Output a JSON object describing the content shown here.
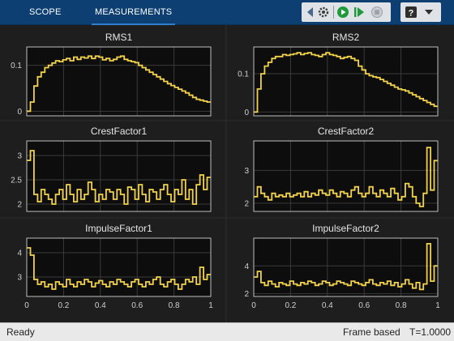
{
  "toolstrip": {
    "tabs": [
      {
        "label": "SCOPE",
        "active": false
      },
      {
        "label": "MEASUREMENTS",
        "active": true
      }
    ],
    "icons": [
      "left-arrow-icon",
      "settings-gear-icon",
      "run-icon",
      "step-forward-icon",
      "stop-icon",
      "help-icon",
      "expand-icon"
    ]
  },
  "status": {
    "left": "Ready",
    "mode": "Frame based",
    "time": "T=1.0000"
  },
  "colors": {
    "trace": "#f2d24b",
    "axes_bg": "#0d0d0d",
    "figure_bg": "#1e1e1e",
    "axis_line": "#bfbfbf",
    "grid": "#3a3a3a"
  },
  "chart_data": [
    {
      "type": "line",
      "title": "RMS1",
      "xlim": [
        0,
        1
      ],
      "ylim": [
        -0.01,
        0.14
      ],
      "yticks": [
        0,
        0.1
      ],
      "ytick_labels": [
        "0",
        "0.1"
      ],
      "show_xticks": false,
      "grid": true,
      "series": [
        {
          "values": [
            0,
            0.02,
            0.055,
            0.075,
            0.085,
            0.095,
            0.1,
            0.105,
            0.11,
            0.108,
            0.112,
            0.115,
            0.11,
            0.118,
            0.113,
            0.118,
            0.116,
            0.12,
            0.115,
            0.12,
            0.118,
            0.112,
            0.115,
            0.11,
            0.113,
            0.118,
            0.12,
            0.113,
            0.11,
            0.108,
            0.106,
            0.1,
            0.095,
            0.09,
            0.085,
            0.08,
            0.075,
            0.07,
            0.065,
            0.06,
            0.056,
            0.052,
            0.048,
            0.044,
            0.04,
            0.035,
            0.03,
            0.026,
            0.024,
            0.022,
            0.02
          ]
        }
      ]
    },
    {
      "type": "line",
      "title": "RMS2",
      "xlim": [
        0,
        1
      ],
      "ylim": [
        -0.01,
        0.17
      ],
      "yticks": [
        0,
        0.1
      ],
      "ytick_labels": [
        "0",
        "0.1"
      ],
      "show_xticks": false,
      "grid": true,
      "series": [
        {
          "values": [
            0,
            0.06,
            0.1,
            0.12,
            0.13,
            0.14,
            0.145,
            0.145,
            0.15,
            0.148,
            0.15,
            0.152,
            0.155,
            0.15,
            0.153,
            0.155,
            0.15,
            0.148,
            0.145,
            0.15,
            0.155,
            0.15,
            0.148,
            0.145,
            0.14,
            0.143,
            0.145,
            0.14,
            0.135,
            0.12,
            0.11,
            0.1,
            0.095,
            0.092,
            0.09,
            0.085,
            0.08,
            0.075,
            0.07,
            0.065,
            0.06,
            0.058,
            0.055,
            0.05,
            0.045,
            0.04,
            0.035,
            0.03,
            0.025,
            0.02,
            0.015
          ]
        }
      ]
    },
    {
      "type": "line",
      "title": "CrestFactor1",
      "xlim": [
        0,
        1
      ],
      "ylim": [
        1.85,
        3.3
      ],
      "yticks": [
        2,
        2.5,
        3
      ],
      "ytick_labels": [
        "2",
        "2.5",
        "3"
      ],
      "show_xticks": false,
      "grid": true,
      "series": [
        {
          "values": [
            2.9,
            3.1,
            2.2,
            2.05,
            2.3,
            2.2,
            2.1,
            2.0,
            2.2,
            2.3,
            2.1,
            2.4,
            2.2,
            2.05,
            2.3,
            2.1,
            2.2,
            2.45,
            2.3,
            2.05,
            2.2,
            2.1,
            2.3,
            2.25,
            2.1,
            2.3,
            2.2,
            2.0,
            2.35,
            2.3,
            2.1,
            2.4,
            2.2,
            2.05,
            2.3,
            2.25,
            2.1,
            2.3,
            2.4,
            2.2,
            2.05,
            2.3,
            2.2,
            2.5,
            2.1,
            2.3,
            2.0,
            2.4,
            2.6,
            2.3,
            2.55
          ]
        }
      ]
    },
    {
      "type": "line",
      "title": "CrestFactor2",
      "xlim": [
        0,
        1
      ],
      "ylim": [
        1.75,
        3.9
      ],
      "yticks": [
        2,
        3
      ],
      "ytick_labels": [
        "2",
        "3"
      ],
      "show_xticks": false,
      "grid": true,
      "series": [
        {
          "values": [
            2.2,
            2.5,
            2.3,
            2.2,
            2.1,
            2.3,
            2.2,
            2.25,
            2.2,
            2.3,
            2.2,
            2.25,
            2.3,
            2.2,
            2.35,
            2.2,
            2.3,
            2.25,
            2.4,
            2.3,
            2.25,
            2.4,
            2.3,
            2.2,
            2.35,
            2.3,
            2.2,
            2.4,
            2.5,
            2.3,
            2.2,
            2.3,
            2.5,
            2.3,
            2.2,
            2.4,
            2.3,
            2.2,
            2.45,
            2.3,
            2.1,
            2.2,
            2.6,
            2.5,
            2.2,
            2.0,
            1.9,
            2.3,
            3.7,
            2.4,
            3.3
          ]
        }
      ]
    },
    {
      "type": "line",
      "title": "ImpulseFactor1",
      "xlim": [
        0,
        1
      ],
      "ylim": [
        2.2,
        4.6
      ],
      "yticks": [
        3,
        4
      ],
      "ytick_labels": [
        "3",
        "4"
      ],
      "show_xticks": true,
      "xticks": [
        0,
        0.2,
        0.4,
        0.6,
        0.8,
        1
      ],
      "xtick_labels": [
        "0",
        "0.2",
        "0.4",
        "0.6",
        "0.8",
        "1"
      ],
      "grid": true,
      "series": [
        {
          "values": [
            4.2,
            3.9,
            2.9,
            2.7,
            2.8,
            2.6,
            2.7,
            2.5,
            2.8,
            2.7,
            2.6,
            2.9,
            2.7,
            2.6,
            2.8,
            2.7,
            2.9,
            2.8,
            2.6,
            2.75,
            2.85,
            2.7,
            2.6,
            2.8,
            2.7,
            2.9,
            2.8,
            2.7,
            2.6,
            2.8,
            2.9,
            2.7,
            2.6,
            2.8,
            2.7,
            2.9,
            3.0,
            2.7,
            2.6,
            2.8,
            2.9,
            2.7,
            2.5,
            2.7,
            2.9,
            2.8,
            3.0,
            2.7,
            3.4,
            2.9,
            3.1
          ]
        }
      ]
    },
    {
      "type": "line",
      "title": "ImpulseFactor2",
      "xlim": [
        0,
        1
      ],
      "ylim": [
        1.8,
        6.0
      ],
      "yticks": [
        2,
        4
      ],
      "ytick_labels": [
        "2",
        "4"
      ],
      "show_xticks": true,
      "xticks": [
        0,
        0.2,
        0.4,
        0.6,
        0.8,
        1
      ],
      "xtick_labels": [
        "0",
        "0.2",
        "0.4",
        "0.6",
        "0.8",
        "1"
      ],
      "grid": true,
      "series": [
        {
          "values": [
            3.2,
            3.6,
            2.8,
            2.6,
            2.9,
            2.7,
            2.5,
            2.8,
            2.7,
            2.6,
            2.9,
            2.7,
            2.6,
            2.8,
            2.7,
            2.9,
            2.8,
            2.6,
            2.7,
            2.9,
            2.8,
            2.6,
            2.7,
            2.9,
            2.8,
            2.7,
            2.6,
            2.9,
            2.8,
            2.7,
            2.6,
            2.8,
            3.0,
            2.7,
            2.6,
            2.8,
            2.7,
            2.9,
            2.6,
            2.8,
            2.5,
            2.7,
            3.0,
            2.7,
            2.4,
            2.8,
            2.3,
            2.7,
            5.6,
            2.9,
            4.0
          ]
        }
      ]
    }
  ]
}
